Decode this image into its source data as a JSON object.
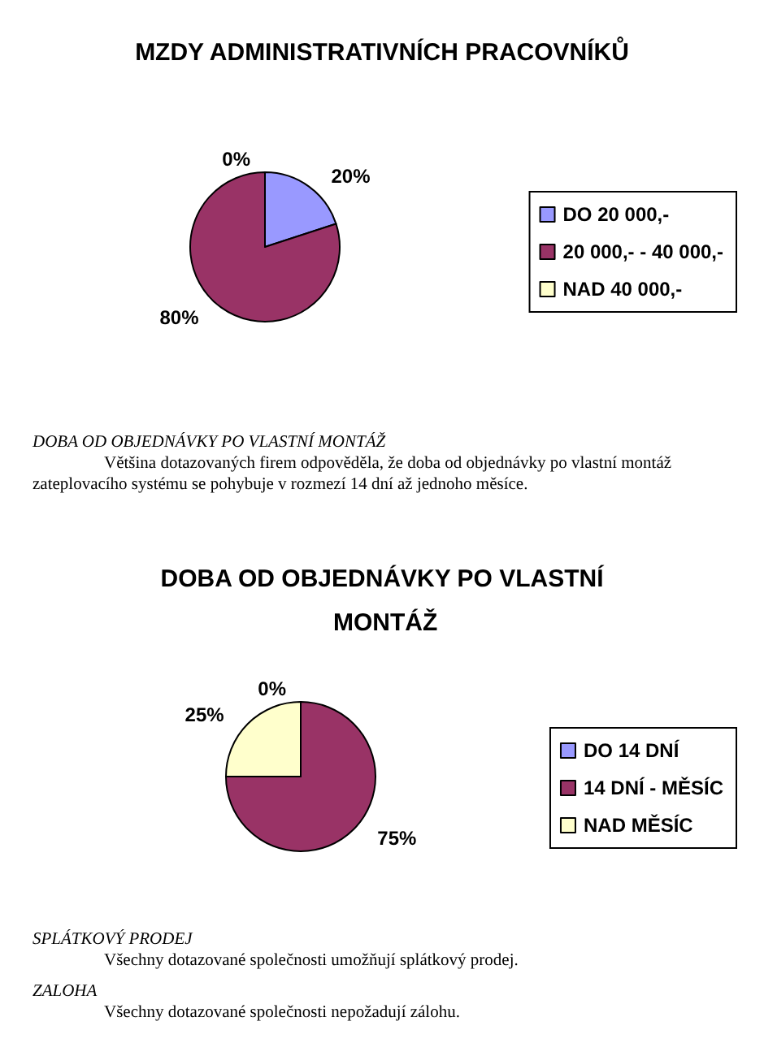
{
  "chart_data": [
    {
      "type": "pie",
      "title": "MZDY ADMINISTRATIVNÍCH PRACOVNÍKŮ",
      "categories": [
        "DO 20 000,-",
        "20 000,- - 40 000,-",
        "NAD 40 000,-"
      ],
      "values": [
        20,
        80,
        0
      ],
      "colors": [
        "#9999ff",
        "#993366",
        "#ffffcc"
      ],
      "value_labels": [
        "20%",
        "80%",
        "0%"
      ],
      "legend": "right",
      "annotations": [
        "DOBA OD OBJEDNÁVKY PO VLASTNÍ MONTÁŽ",
        "Většina dotazovaných firem odpověděla, že doba od objednávky po vlastní montáž zateplovacího systému se pohybuje v rozmezí 14 dní až jednoho měsíce."
      ]
    },
    {
      "type": "pie",
      "title": "DOBA OD OBJEDNÁVKY PO VLASTNÍ MONTÁŽ",
      "categories": [
        "DO 14 DNÍ",
        "14 DNÍ - MĚSÍC",
        "NAD MĚSÍC"
      ],
      "values": [
        0,
        75,
        25
      ],
      "colors": [
        "#9999ff",
        "#993366",
        "#ffffcc"
      ],
      "value_labels": [
        "0%",
        "75%",
        "25%"
      ],
      "legend": "right",
      "annotations": [
        "SPLÁTKOVÝ PRODEJ",
        "Všechny dotazované společnosti umožňují splátkový prodej.",
        "ZALOHA",
        "Všechny dotazované společnosti nepožadují zálohu."
      ]
    }
  ]
}
